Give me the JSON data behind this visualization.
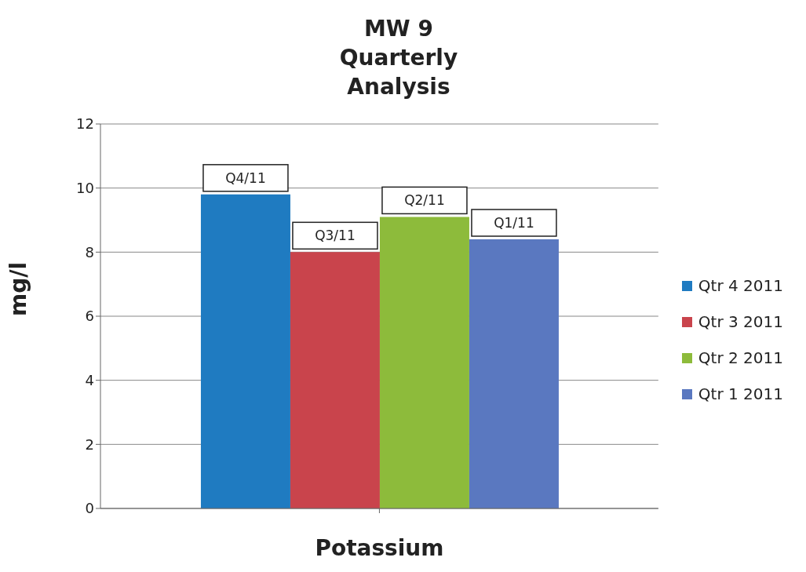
{
  "chart_data": {
    "type": "bar",
    "title": "MW 9\nQuarterly\nAnalysis",
    "xlabel": "Potassium",
    "ylabel": "mg/l",
    "categories": [
      null
    ],
    "series": [
      {
        "name": "Qtr 4 2011",
        "color": "#1f7bc1",
        "values": [
          9.8
        ],
        "value_labels": [
          "Q4/11"
        ]
      },
      {
        "name": "Qtr 3 2011",
        "color": "#c9444c",
        "values": [
          8.0
        ],
        "value_labels": [
          "Q3/11"
        ]
      },
      {
        "name": "Qtr 2 2011",
        "color": "#8dbb3b",
        "values": [
          9.1
        ],
        "value_labels": [
          "Q2/11"
        ]
      },
      {
        "name": "Qtr 1 2011",
        "color": "#5a78c0",
        "values": [
          8.4
        ],
        "value_labels": [
          "Q1/11"
        ]
      }
    ],
    "ylim": [
      0,
      12
    ],
    "yticks": [
      0,
      2,
      4,
      6,
      8,
      10,
      12
    ],
    "grid": "y",
    "legend": "right"
  }
}
